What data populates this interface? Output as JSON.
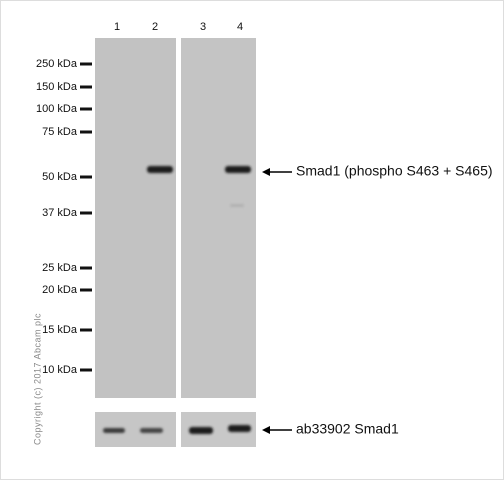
{
  "lanes": [
    "1",
    "2",
    "3",
    "4"
  ],
  "markers": [
    "250 kDa",
    "150 kDa",
    "100 kDa",
    "75 kDa",
    "50 kDa",
    "37 kDa",
    "25 kDa",
    "20 kDa",
    "15 kDa",
    "10 kDa"
  ],
  "annotations": {
    "upper": "Smad1 (phospho S463 + S465)",
    "lower": "ab33902 Smad1"
  },
  "copyright": "Copyright (c) 2017 Abcam plc"
}
